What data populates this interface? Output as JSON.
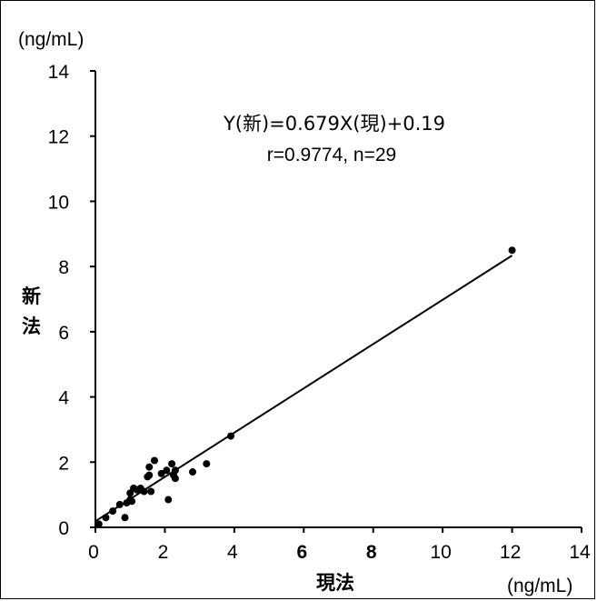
{
  "chart_data": {
    "type": "scatter",
    "title": "",
    "xlabel": "現法",
    "ylabel": "新法",
    "x_unit": "(ng/mL)",
    "y_unit": "(ng/mL)",
    "xlim": [
      0,
      14
    ],
    "ylim": [
      0,
      14
    ],
    "x_ticks": [
      "0",
      "2",
      "4",
      "6",
      "8",
      "10",
      "12",
      "14"
    ],
    "y_ticks": [
      "0",
      "2",
      "4",
      "6",
      "8",
      "10",
      "12",
      "14"
    ],
    "grid": false,
    "legend": "none",
    "annotation": {
      "line1": "Y(新)=0.679X(現)+0.19",
      "line2": "r=0.9774, n=29"
    },
    "regression": {
      "slope": 0.679,
      "intercept": 0.19,
      "x_range": [
        0,
        12
      ]
    },
    "points": [
      {
        "x": 0.1,
        "y": 0.1
      },
      {
        "x": 0.3,
        "y": 0.3
      },
      {
        "x": 0.5,
        "y": 0.5
      },
      {
        "x": 0.7,
        "y": 0.7
      },
      {
        "x": 0.85,
        "y": 0.3
      },
      {
        "x": 0.9,
        "y": 0.75
      },
      {
        "x": 1.0,
        "y": 0.85
      },
      {
        "x": 1.0,
        "y": 1.05
      },
      {
        "x": 1.05,
        "y": 0.8
      },
      {
        "x": 1.1,
        "y": 1.2
      },
      {
        "x": 1.2,
        "y": 1.15
      },
      {
        "x": 1.3,
        "y": 1.2
      },
      {
        "x": 1.4,
        "y": 1.1
      },
      {
        "x": 1.5,
        "y": 1.55
      },
      {
        "x": 1.55,
        "y": 1.85
      },
      {
        "x": 1.6,
        "y": 1.1
      },
      {
        "x": 1.7,
        "y": 2.05
      },
      {
        "x": 1.9,
        "y": 1.65
      },
      {
        "x": 2.05,
        "y": 1.75
      },
      {
        "x": 2.1,
        "y": 0.85
      },
      {
        "x": 2.2,
        "y": 1.95
      },
      {
        "x": 2.25,
        "y": 1.6
      },
      {
        "x": 2.3,
        "y": 1.75
      },
      {
        "x": 2.3,
        "y": 1.5
      },
      {
        "x": 2.8,
        "y": 1.7
      },
      {
        "x": 3.2,
        "y": 1.95
      },
      {
        "x": 3.9,
        "y": 2.8
      },
      {
        "x": 12.0,
        "y": 8.5
      },
      {
        "x": 1.55,
        "y": 1.6
      }
    ]
  }
}
